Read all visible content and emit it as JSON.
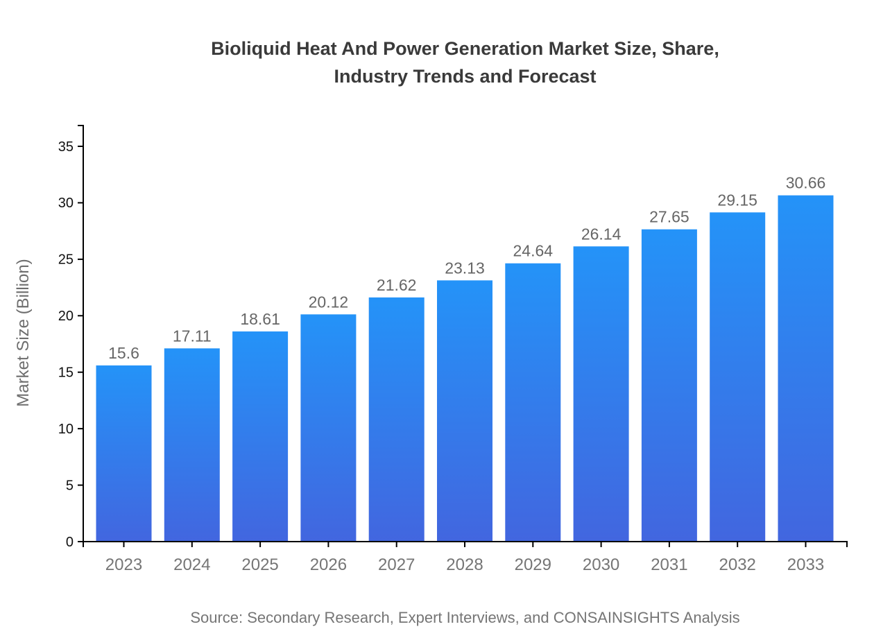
{
  "header": {
    "title_line1": "Bioliquid Heat And Power Generation Market Size, Share,",
    "title_line2": "Industry Trends and Forecast"
  },
  "footer": {
    "source": "Source: Secondary Research, Expert Interviews, and CONSAINSIGHTS Analysis"
  },
  "chart_data": {
    "type": "bar",
    "title": "Bioliquid Heat And Power Generation Market Size, Share, Industry Trends and Forecast",
    "categories": [
      "2023",
      "2024",
      "2025",
      "2026",
      "2027",
      "2028",
      "2029",
      "2030",
      "2031",
      "2032",
      "2033"
    ],
    "values": [
      15.6,
      17.11,
      18.61,
      20.12,
      21.62,
      23.13,
      24.64,
      26.14,
      27.65,
      29.15,
      30.66
    ],
    "value_labels": [
      "15.6",
      "17.11",
      "18.61",
      "20.12",
      "21.62",
      "23.13",
      "24.64",
      "26.14",
      "27.65",
      "29.15",
      "30.66"
    ],
    "xlabel": "",
    "ylabel": "Market Size (Billion)",
    "ylim": [
      0,
      35
    ],
    "yticks": [
      0,
      5,
      10,
      15,
      20,
      25,
      30,
      35
    ],
    "grid": false,
    "legend": null,
    "colors": {
      "bar_gradient_top": "#2493F8",
      "bar_gradient_bottom": "#4266DF",
      "axis": "#000000",
      "y_tick_label": "#111111",
      "x_tick_label": "#757575",
      "value_label": "#666666",
      "title": "#3a3a3a",
      "ylabel": "#6e6e6e",
      "source": "#757575"
    }
  }
}
